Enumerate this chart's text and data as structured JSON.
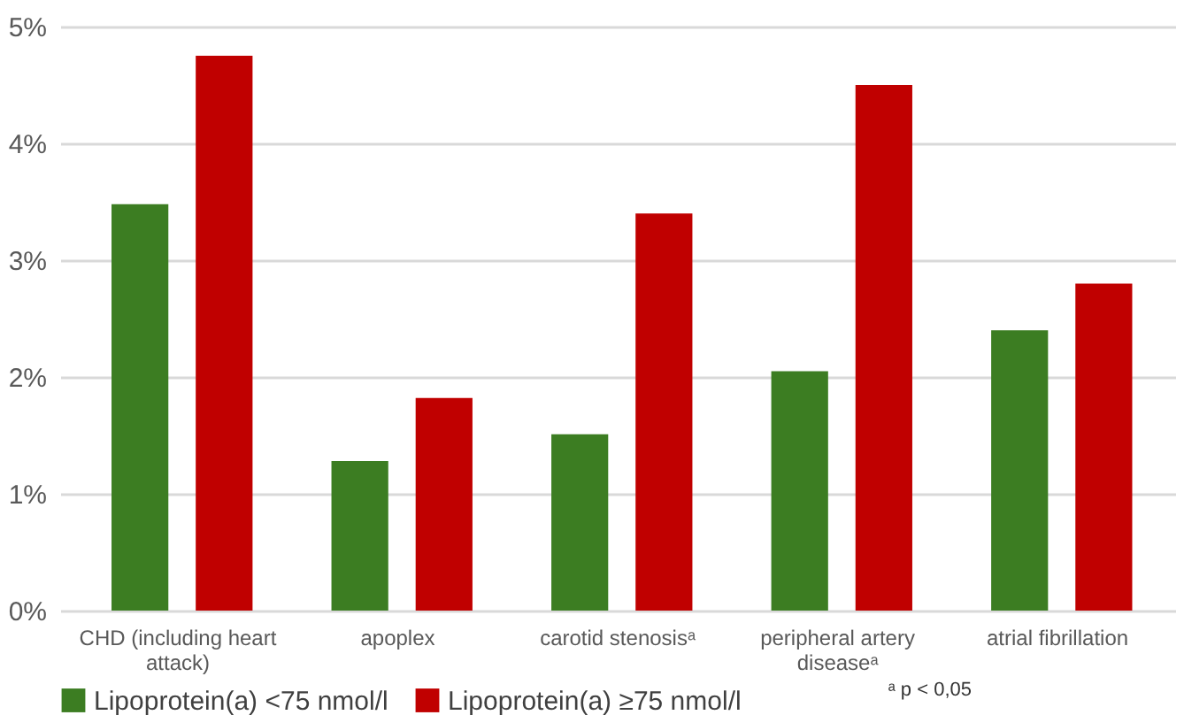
{
  "chart_data": {
    "type": "bar",
    "categories": [
      "CHD (including heart attack)",
      "apoplex",
      "carotid stenosisᵃ",
      "peripheral artery diseaseᵃ",
      "atrial fibrillation"
    ],
    "series": [
      {
        "name": "Lipoprotein(a) <75 nmol/l",
        "color": "#3c7d22",
        "values": [
          3.48,
          1.28,
          1.51,
          2.05,
          2.4
        ]
      },
      {
        "name": "Lipoprotein(a) ≥75 nmol/l",
        "color": "#c00000",
        "values": [
          4.75,
          1.82,
          3.4,
          4.5,
          2.8
        ]
      }
    ],
    "ylim": [
      0,
      5
    ],
    "yticks": [
      {
        "value": 0,
        "label": "0%"
      },
      {
        "value": 1,
        "label": "1%"
      },
      {
        "value": 2,
        "label": "2%"
      },
      {
        "value": 3,
        "label": "3%"
      },
      {
        "value": 4,
        "label": "4%"
      },
      {
        "value": 5,
        "label": "5%"
      }
    ],
    "grid": "y",
    "legend": "bottom",
    "annotations": [
      "ᵃ p < 0,05"
    ]
  }
}
